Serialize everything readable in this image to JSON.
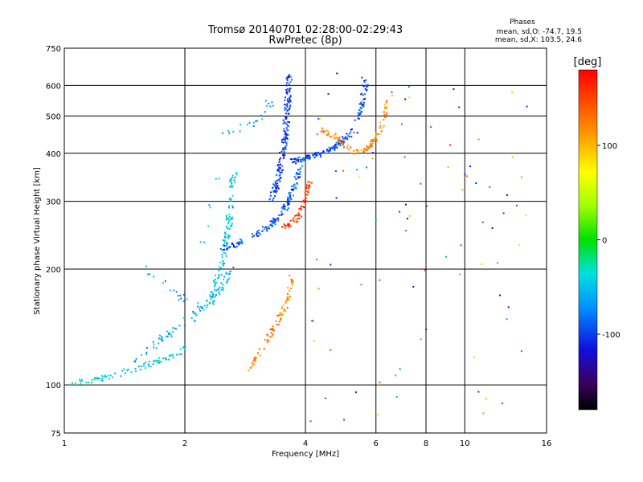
{
  "chart_data": {
    "type": "scatter",
    "title": "Tromsø 20140701 02:28:00-02:29:43",
    "subtitle": "RwPretec (8p)",
    "xlabel": "Frequency [MHz]",
    "ylabel": "Stationary phase Virtual Height [km]",
    "x_scale": "log",
    "y_scale": "log",
    "xlim": [
      1,
      16
    ],
    "ylim": [
      75,
      750
    ],
    "x_ticks": [
      1,
      2,
      4,
      6,
      8,
      10,
      16
    ],
    "y_ticks": [
      75,
      100,
      200,
      300,
      400,
      500,
      600,
      750
    ],
    "grid_x": [
      2,
      4,
      6,
      8,
      10
    ],
    "grid_y": [
      100,
      200,
      300,
      400,
      500,
      600
    ],
    "grid": true,
    "phases": {
      "title": "Phases",
      "line1": "mean, sd,O: -74.7, 19.5",
      "line2": "mean, sd,X: 103.5, 24.6"
    },
    "colorbar": {
      "label": "[deg]",
      "range": [
        -180,
        180
      ],
      "ticks": [
        100,
        0,
        -100
      ]
    },
    "traces": [
      {
        "desc": "low-frequency trace",
        "x": [
          1.0,
          1.15,
          1.3,
          1.5,
          1.7,
          1.9,
          2.0
        ],
        "y": [
          100,
          102,
          105,
          110,
          115,
          120,
          125
        ],
        "phase": -40,
        "spread": 0.035,
        "n": 90
      },
      {
        "desc": "rising E/F trace",
        "x": [
          1.5,
          1.7,
          1.9,
          2.1,
          2.3,
          2.5,
          2.6
        ],
        "y": [
          115,
          128,
          140,
          150,
          165,
          180,
          200
        ],
        "phase": -60,
        "spread": 0.04,
        "n": 90
      },
      {
        "desc": "F1 cusp",
        "x": [
          2.3,
          2.45,
          2.55,
          2.6,
          2.65
        ],
        "y": [
          160,
          200,
          240,
          290,
          360
        ],
        "phase": -45,
        "spread": 0.04,
        "n": 120
      },
      {
        "desc": "F1 layer band",
        "x": [
          2.4,
          2.7,
          3.0,
          3.3,
          3.5,
          3.65,
          3.75,
          3.9
        ],
        "y": [
          225,
          232,
          245,
          262,
          280,
          300,
          330,
          370
        ],
        "phase": -90,
        "spread": 0.03,
        "n": 150
      },
      {
        "desc": "O-mode F2 cusp",
        "x": [
          3.3,
          3.45,
          3.55,
          3.6,
          3.65
        ],
        "y": [
          300,
          360,
          430,
          520,
          640
        ],
        "phase": -100,
        "spread": 0.035,
        "n": 180
      },
      {
        "desc": "O-mode F2 upper",
        "x": [
          3.7,
          4.0,
          4.4,
          4.8,
          5.2,
          5.5,
          5.7
        ],
        "y": [
          380,
          390,
          400,
          420,
          450,
          520,
          630
        ],
        "phase": -95,
        "spread": 0.03,
        "n": 170
      },
      {
        "desc": "X-mode lower trace",
        "x": [
          2.9,
          3.2,
          3.4,
          3.6,
          3.7
        ],
        "y": [
          110,
          130,
          145,
          165,
          190
        ],
        "phase": 120,
        "spread": 0.03,
        "n": 80
      },
      {
        "desc": "X-mode mid trace",
        "x": [
          3.5,
          3.8,
          4.0,
          4.1
        ],
        "y": [
          255,
          270,
          300,
          340
        ],
        "phase": 150,
        "spread": 0.03,
        "n": 70
      },
      {
        "desc": "X-mode upper trace",
        "x": [
          4.4,
          4.8,
          5.3,
          5.7,
          6.1,
          6.5
        ],
        "y": [
          460,
          440,
          400,
          410,
          450,
          560
        ],
        "phase": 120,
        "spread": 0.03,
        "n": 110
      },
      {
        "desc": "oblique scatter",
        "x": [
          1.6,
          2.1,
          2.5,
          3.0,
          3.3
        ],
        "y": [
          200,
          160,
          450,
          480,
          550
        ],
        "phase": -60,
        "spread": 0.05,
        "n": 45
      }
    ]
  }
}
